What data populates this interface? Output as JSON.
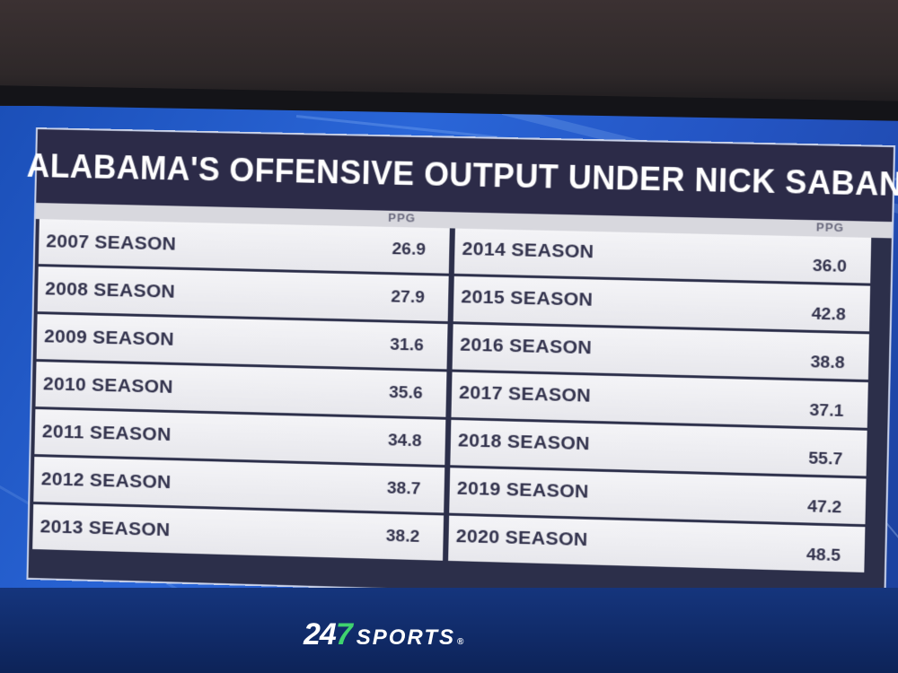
{
  "graphic": {
    "title": "ALABAMA'S OFFENSIVE OUTPUT UNDER NICK SABAN",
    "column_header": "PPG",
    "left_rows": [
      {
        "season": "2007 SEASON",
        "ppg": "26.9"
      },
      {
        "season": "2008 SEASON",
        "ppg": "27.9"
      },
      {
        "season": "2009 SEASON",
        "ppg": "31.6"
      },
      {
        "season": "2010 SEASON",
        "ppg": "35.6"
      },
      {
        "season": "2011 SEASON",
        "ppg": "34.8"
      },
      {
        "season": "2012 SEASON",
        "ppg": "38.7"
      },
      {
        "season": "2013 SEASON",
        "ppg": "38.2"
      }
    ],
    "right_rows": [
      {
        "season": "2014 SEASON",
        "ppg": "36.0"
      },
      {
        "season": "2015 SEASON",
        "ppg": "42.8"
      },
      {
        "season": "2016 SEASON",
        "ppg": "38.8"
      },
      {
        "season": "2017 SEASON",
        "ppg": "37.1"
      },
      {
        "season": "2018 SEASON",
        "ppg": "55.7"
      },
      {
        "season": "2019 SEASON",
        "ppg": "47.2"
      },
      {
        "season": "2020 SEASON",
        "ppg": "48.5"
      }
    ]
  },
  "branding": {
    "logo_number_part1": "24",
    "logo_number_part2": "7",
    "logo_word": "SPORTS",
    "logo_mark": "®",
    "accent_green": "#3fd36f"
  }
}
